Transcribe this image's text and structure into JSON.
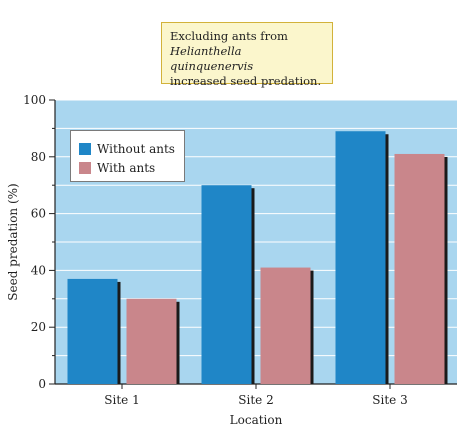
{
  "callout": {
    "line1": "Excluding ants from",
    "line2": "Helianthella quinquenervis",
    "line3": "increased seed predation."
  },
  "colors": {
    "plot_background": "#a9d6ef",
    "without_ants": "#1f86c7",
    "with_ants": "#c9868b",
    "bar_shadow": "#1a1a1a"
  },
  "chart_data": {
    "type": "bar",
    "categories": [
      "Site 1",
      "Site 2",
      "Site 3"
    ],
    "series": [
      {
        "name": "Without ants",
        "values": [
          37,
          70,
          89
        ]
      },
      {
        "name": "With ants",
        "values": [
          30,
          41,
          81
        ]
      }
    ],
    "xlabel": "Location",
    "ylabel": "Seed predation (%)",
    "ylim": [
      0,
      100
    ],
    "yticks": [
      0,
      20,
      40,
      60,
      80,
      100
    ],
    "grid": true,
    "legend_position": "top-left"
  }
}
